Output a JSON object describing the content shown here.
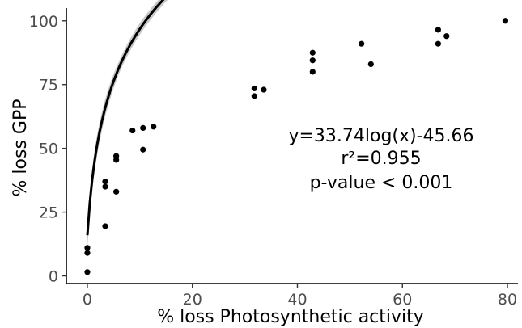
{
  "chart_data": {
    "type": "scatter",
    "xlabel": "% loss Photosynthetic activity",
    "ylabel": "% loss GPP",
    "xlim": [
      -4,
      82
    ],
    "ylim": [
      -3,
      105
    ],
    "xticks": [
      0,
      20,
      40,
      60,
      80
    ],
    "yticks": [
      0,
      25,
      50,
      75,
      100
    ],
    "xtick_labels": [
      "0",
      "20",
      "40",
      "60",
      "80"
    ],
    "ytick_labels": [
      "0",
      "25",
      "50",
      "75",
      "100"
    ],
    "grid": false,
    "points": {
      "x": [
        0,
        0,
        0,
        3.4,
        3.4,
        3.4,
        5.5,
        5.5,
        5.5,
        8.6,
        10.6,
        10.6,
        12.6,
        31.8,
        31.8,
        33.6,
        42.9,
        42.9,
        42.9,
        52.2,
        54,
        66.8,
        66.8,
        68.4,
        79.6
      ],
      "y": [
        1.5,
        9,
        11,
        19.5,
        35,
        37,
        33,
        45.5,
        47,
        57,
        49.5,
        58,
        58.5,
        70.5,
        73.5,
        73,
        80,
        84.5,
        87.5,
        91,
        83,
        91,
        96.5,
        94,
        100
      ]
    },
    "fit": {
      "model": "log",
      "a": 33.74,
      "b": -45.66,
      "x_range": [
        0,
        74
      ],
      "confidence_band": true
    },
    "annotations": [
      "y=33.74log(x)-45.66",
      "r²=0.955",
      "p-value < 0.001"
    ],
    "colors": {
      "points": "#000000",
      "line": "#000000",
      "band": "#c8c8c8"
    }
  }
}
